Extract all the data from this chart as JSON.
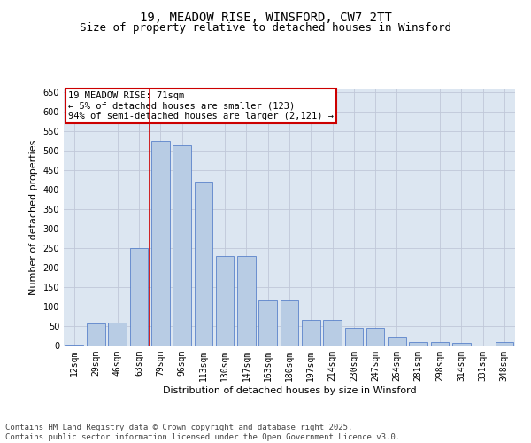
{
  "title_line1": "19, MEADOW RISE, WINSFORD, CW7 2TT",
  "title_line2": "Size of property relative to detached houses in Winsford",
  "xlabel": "Distribution of detached houses by size in Winsford",
  "ylabel": "Number of detached properties",
  "categories": [
    "12sqm",
    "29sqm",
    "46sqm",
    "63sqm",
    "79sqm",
    "96sqm",
    "113sqm",
    "130sqm",
    "147sqm",
    "163sqm",
    "180sqm",
    "197sqm",
    "214sqm",
    "230sqm",
    "247sqm",
    "264sqm",
    "281sqm",
    "298sqm",
    "314sqm",
    "331sqm",
    "348sqm"
  ],
  "values": [
    3,
    58,
    60,
    250,
    525,
    515,
    420,
    230,
    230,
    115,
    115,
    65,
    65,
    45,
    45,
    22,
    10,
    8,
    6,
    1,
    8
  ],
  "bar_color": "#b8cce4",
  "bar_edge_color": "#4472c4",
  "annotation_line1": "19 MEADOW RISE: 71sqm",
  "annotation_line2": "← 5% of detached houses are smaller (123)",
  "annotation_line3": "94% of semi-detached houses are larger (2,121) →",
  "annotation_box_color": "#ffffff",
  "annotation_box_edge": "#cc0000",
  "vline_color": "#cc0000",
  "vline_x_index": 3.5,
  "ylim": [
    0,
    660
  ],
  "yticks": [
    0,
    50,
    100,
    150,
    200,
    250,
    300,
    350,
    400,
    450,
    500,
    550,
    600,
    650
  ],
  "grid_color": "#c0c8d8",
  "background_color": "#dce6f1",
  "footer_line1": "Contains HM Land Registry data © Crown copyright and database right 2025.",
  "footer_line2": "Contains public sector information licensed under the Open Government Licence v3.0.",
  "title_fontsize": 10,
  "subtitle_fontsize": 9,
  "tick_fontsize": 7,
  "ylabel_fontsize": 8,
  "xlabel_fontsize": 8,
  "footer_fontsize": 6.5,
  "annotation_fontsize": 7.5
}
